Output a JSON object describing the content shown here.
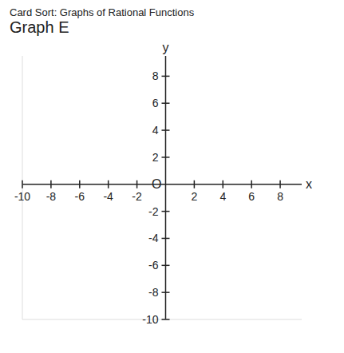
{
  "chart_data": {
    "type": "line",
    "title": "Card Sort: Graphs of Rational Functions",
    "subtitle": "Graph E",
    "x_label": "x",
    "y_label": "y",
    "annotation": "O",
    "series": [],
    "xlim": [
      -10,
      9.5
    ],
    "ylim": [
      -10,
      9.5
    ],
    "xticks": [
      -10,
      -8,
      -6,
      -4,
      -2,
      2,
      4,
      6,
      8
    ],
    "yticks": [
      -10,
      -8,
      -6,
      -4,
      -2,
      2,
      4,
      6,
      8
    ],
    "grid": false
  }
}
